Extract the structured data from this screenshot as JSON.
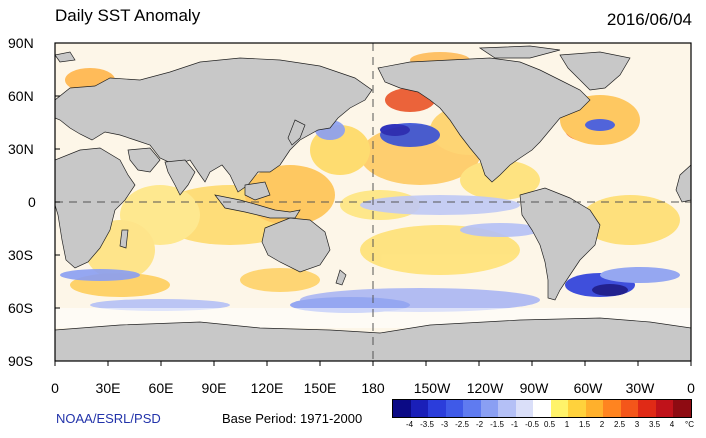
{
  "title": "Daily SST Anomaly",
  "date": "2016/06/04",
  "lat_labels": [
    "90N",
    "60N",
    "30N",
    "0",
    "30S",
    "60S",
    "90S"
  ],
  "lon_labels": [
    "0",
    "30E",
    "60E",
    "90E",
    "120E",
    "150E",
    "180",
    "150W",
    "120W",
    "90W",
    "60W",
    "30W",
    "0"
  ],
  "credit": "NOAA/ESRL/PSD",
  "base_period": "Base Period: 1971-2000",
  "colorbar": {
    "labels": [
      "-4",
      "-3.5",
      "-3",
      "-2.5",
      "-2",
      "-1.5",
      "-1",
      "-0.5",
      "0.5",
      "1",
      "1.5",
      "2",
      "2.5",
      "3",
      "3.5",
      "4"
    ],
    "unit": "°C",
    "colors": [
      "#0b0a85",
      "#1a1fb8",
      "#2b3ddb",
      "#3f5ae8",
      "#5f7bf0",
      "#8a9ff3",
      "#b4c0f6",
      "#dadff9",
      "#ffffff",
      "#fff36a",
      "#ffd23c",
      "#ffb02c",
      "#ff8420",
      "#f4561a",
      "#e02a16",
      "#c0121a",
      "#8e0b12"
    ]
  },
  "map": {
    "land_color": "#c8c8c8",
    "ocean_base_color": "#ffffff",
    "projection": "cylindrical equidistant",
    "lon_range": [
      0,
      360
    ],
    "lat_range": [
      -90,
      90
    ]
  }
}
